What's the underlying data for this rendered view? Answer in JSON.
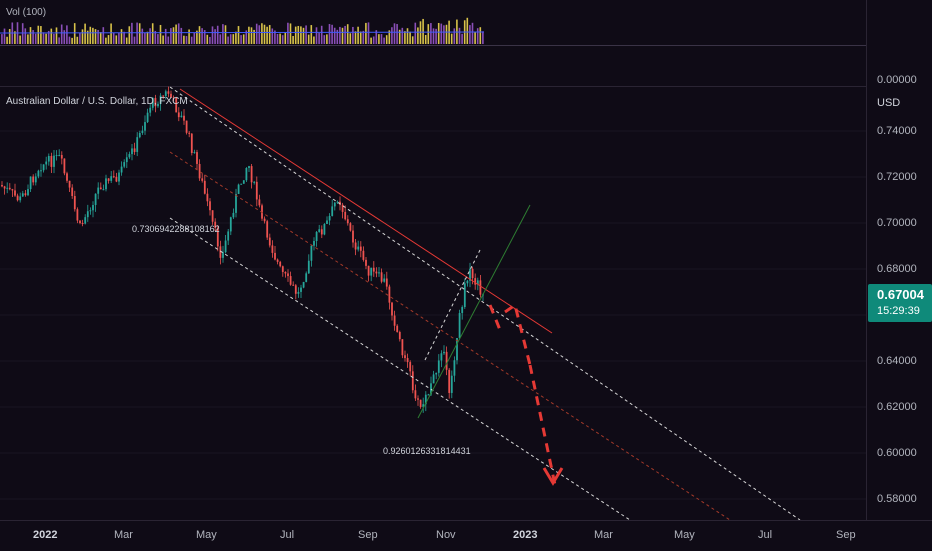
{
  "volume": {
    "label": "Vol (100)"
  },
  "symbol": {
    "title": "Australian Dollar / U.S. Dollar, 1D, FXCM"
  },
  "price_scale": {
    "currency": "USD",
    "ticks": [
      "0.00000",
      "0.74000",
      "0.72000",
      "0.70000",
      "0.68000",
      "0.64000",
      "0.62000",
      "0.60000",
      "0.58000"
    ]
  },
  "last_price": {
    "value": "0.67004",
    "countdown": "15:29:39"
  },
  "time_axis": {
    "labels": [
      "2022",
      "Mar",
      "May",
      "Jul",
      "Sep",
      "Nov",
      "2023",
      "Mar",
      "May",
      "Jul",
      "Sep"
    ]
  },
  "annotations": {
    "label_top": "0.7306942288108162",
    "label_bottom": "0.9260126331814431"
  },
  "colors": {
    "background": "#0f0b16",
    "candle_up": "#26a69a",
    "candle_down": "#ef5350",
    "resistance_line": "#e53935",
    "trend_line": "#2e7d32",
    "projection_arrow": "#e53935",
    "last_price_badge": "#0f8a7a"
  }
}
